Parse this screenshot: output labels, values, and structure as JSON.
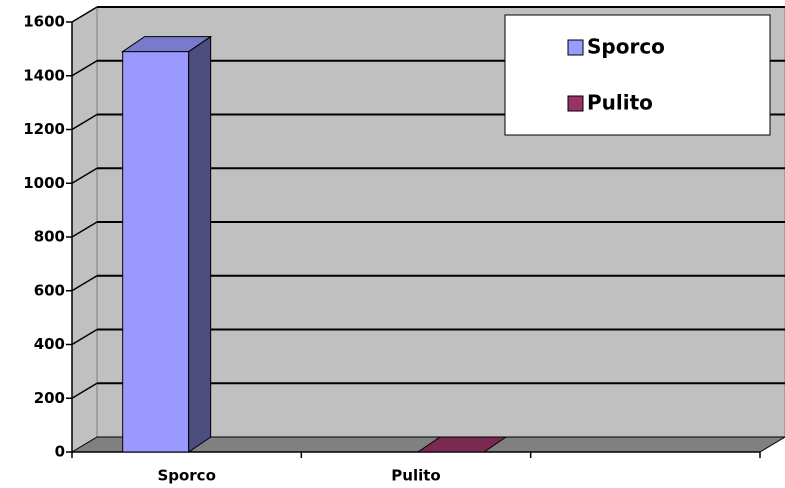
{
  "chart_data": {
    "type": "bar3d",
    "categories": [
      "Sporco",
      "Pulito",
      null
    ],
    "series": [
      {
        "name": "Sporco",
        "color": "#9999ff",
        "values": [
          1490,
          null,
          null
        ]
      },
      {
        "name": "Pulito",
        "color": "#993366",
        "values": [
          null,
          0,
          null
        ]
      }
    ],
    "ylim": [
      0,
      1600
    ],
    "yticks": [
      0,
      200,
      400,
      600,
      800,
      1000,
      1200,
      1400,
      1600
    ],
    "grid": true,
    "legend": "top-right"
  }
}
